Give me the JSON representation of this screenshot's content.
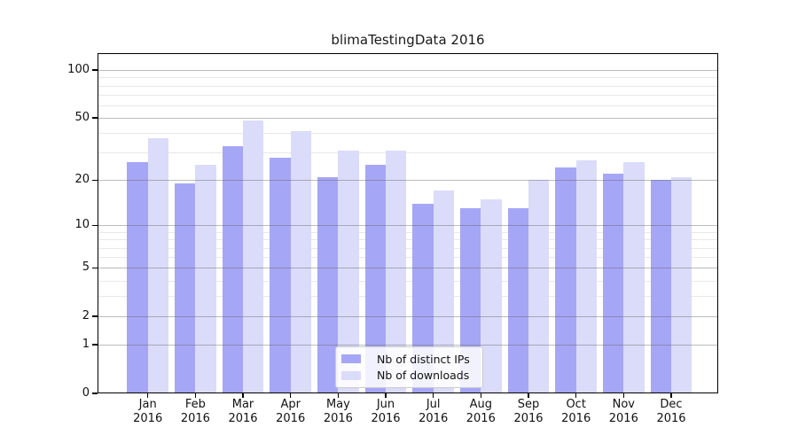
{
  "title": "blimaTestingData 2016",
  "legend": {
    "items": [
      "Nb of distinct IPs",
      "Nb of downloads"
    ]
  },
  "axes": {
    "y_ticks": [
      0,
      1,
      2,
      5,
      10,
      20,
      50,
      100
    ],
    "y_minor_gridlines": [
      3,
      4,
      6,
      7,
      8,
      9,
      30,
      40,
      60,
      70,
      80,
      90
    ],
    "x_months": [
      "Jan",
      "Feb",
      "Mar",
      "Apr",
      "May",
      "Jun",
      "Jul",
      "Aug",
      "Sep",
      "Oct",
      "Nov",
      "Dec"
    ],
    "x_year": "2016"
  },
  "chart_data": {
    "type": "bar",
    "title": "blimaTestingData 2016",
    "categories": [
      "Jan 2016",
      "Feb 2016",
      "Mar 2016",
      "Apr 2016",
      "May 2016",
      "Jun 2016",
      "Jul 2016",
      "Aug 2016",
      "Sep 2016",
      "Oct 2016",
      "Nov 2016",
      "Dec 2016"
    ],
    "series": [
      {
        "name": "Nb of distinct IPs",
        "color": "#a6a6f6",
        "values": [
          26,
          19,
          33,
          28,
          21,
          25,
          14,
          13,
          13,
          24,
          22,
          20
        ]
      },
      {
        "name": "Nb of downloads",
        "color": "#dbdbfa",
        "values": [
          37,
          25,
          48,
          41,
          31,
          31,
          17,
          15,
          20,
          27,
          26,
          21
        ]
      }
    ],
    "yscale": "log(1+y)",
    "ylim": [
      0,
      128
    ],
    "y_tick_values": [
      0,
      1,
      2,
      5,
      10,
      20,
      50,
      100
    ],
    "grid": true,
    "legend_position": "lower center"
  },
  "colors": {
    "bar_distinct_ips": "#a6a6f6",
    "bar_downloads": "#dbdbfa",
    "grid_major": "rgba(95,95,95,0.42)",
    "grid_minor": "rgba(150,150,150,0.22)",
    "axis": "#000000",
    "text": "#111111",
    "legend_border": "#cccccc"
  }
}
